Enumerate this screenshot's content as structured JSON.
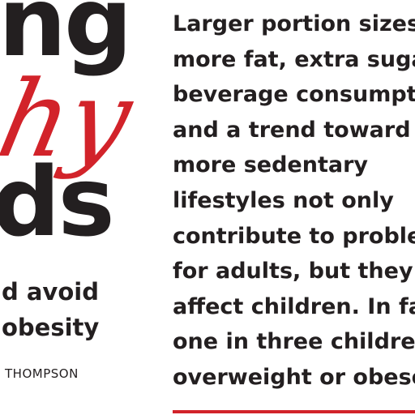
{
  "left": {
    "headline_top": "ng",
    "script_word": "hy",
    "headline_bottom": "ds",
    "subhead_lines": [
      "d avoid",
      "obesity"
    ],
    "byline": "THOMPSON"
  },
  "body": {
    "lines": [
      "Larger portion sizes,",
      "more fat, extra suga",
      "beverage consumpti",
      "and a trend toward",
      "more sedentary",
      "lifestyles not only",
      "contribute to probler",
      "for adults, but they c",
      "affect children. In fa",
      "one in three children",
      "overweight or obese."
    ]
  }
}
